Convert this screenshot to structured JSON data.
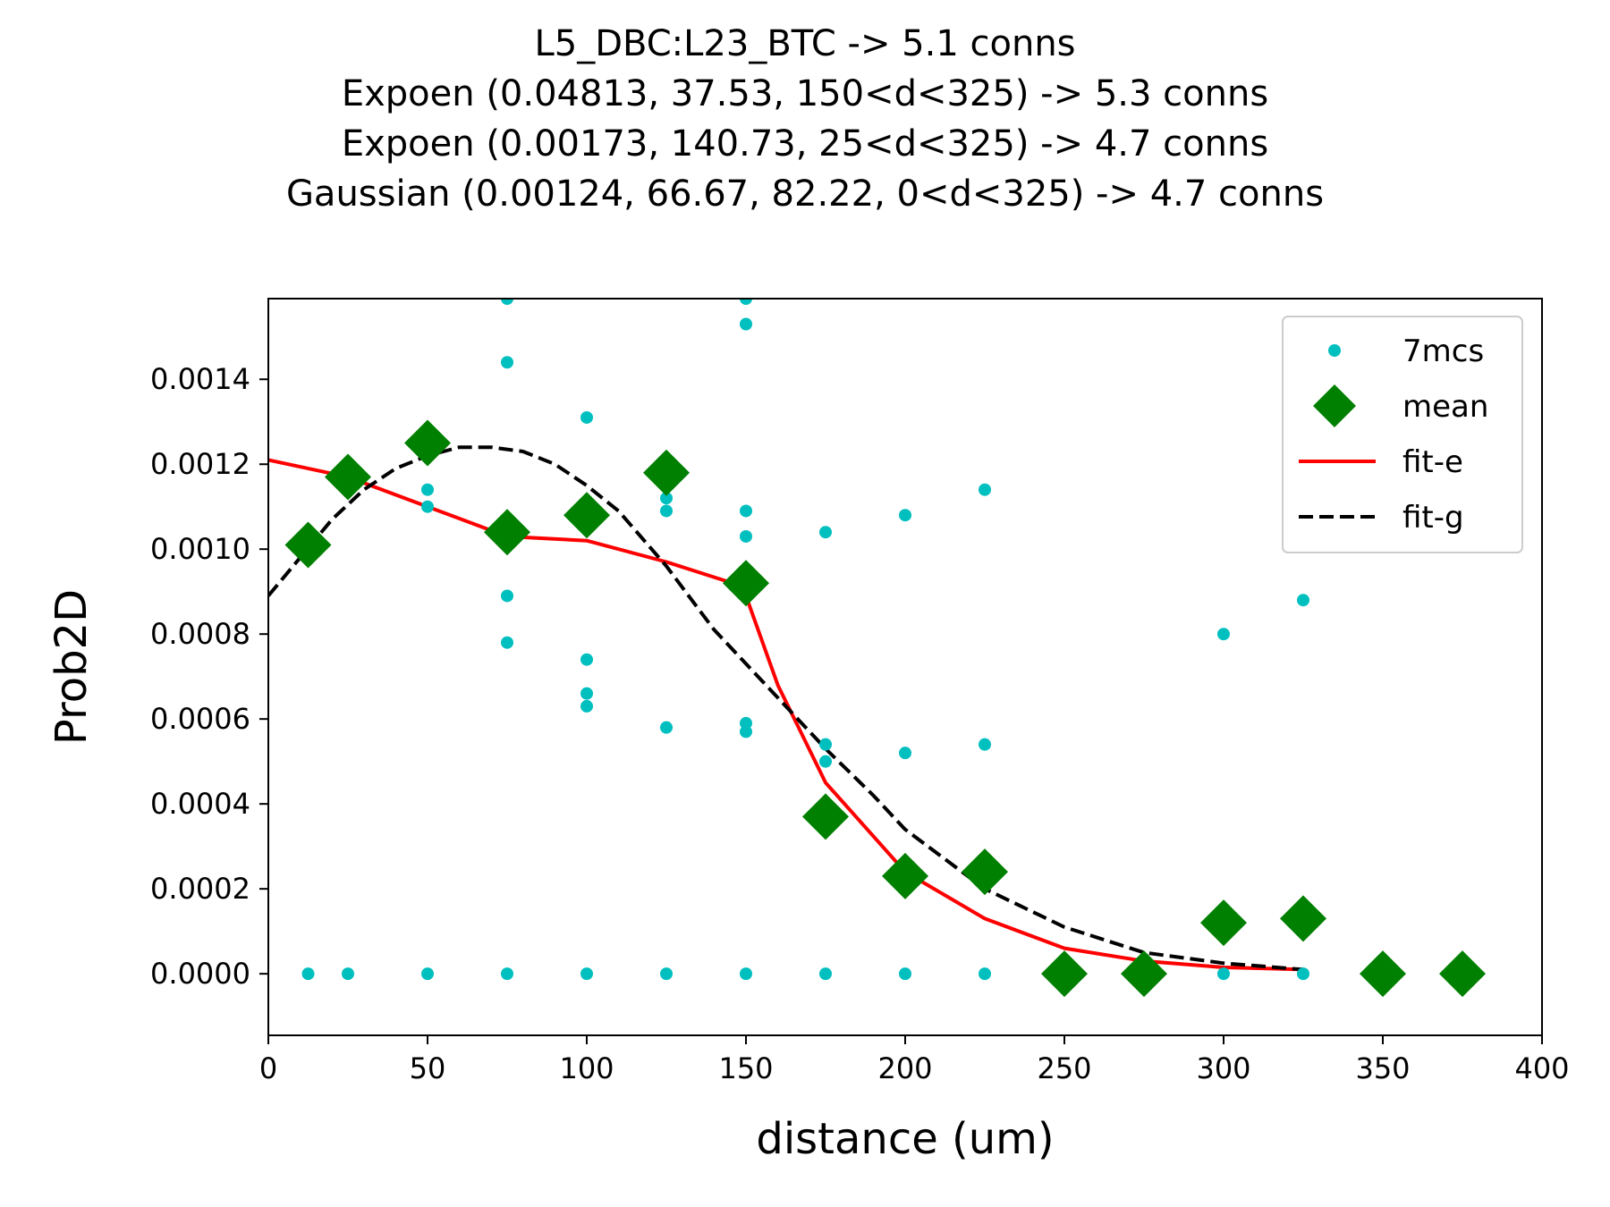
{
  "chart_data": {
    "type": "scatter",
    "title_lines": [
      "L5_DBC:L23_BTC -> 5.1 conns",
      "Expoen (0.04813, 37.53, 150<d<325) -> 5.3 conns",
      "Expoen (0.00173, 140.73, 25<d<325) -> 4.7 conns",
      "Gaussian (0.00124, 66.67, 82.22, 0<d<325) -> 4.7 conns"
    ],
    "xlabel": "distance (um)",
    "ylabel": "Prob2D",
    "xlim": [
      0,
      400
    ],
    "ylim": [
      -0.000145,
      0.00159
    ],
    "xticks": [
      0,
      50,
      100,
      150,
      200,
      250,
      300,
      350,
      400
    ],
    "yticks": [
      0.0,
      0.0002,
      0.0004,
      0.0006,
      0.0008,
      0.001,
      0.0012,
      0.0014
    ],
    "ytick_labels": [
      "0.0000",
      "0.0002",
      "0.0004",
      "0.0006",
      "0.0008",
      "0.0010",
      "0.0012",
      "0.0014"
    ],
    "grid": false,
    "legend_position": "top-right",
    "colors": {
      "points": "#00bfbf",
      "mean": "#008000",
      "fit_e": "#ff0000",
      "fit_g": "#000000"
    },
    "series": [
      {
        "name": "7mcs",
        "kind": "points",
        "points": [
          [
            12.5,
            0.0
          ],
          [
            25,
            0.0
          ],
          [
            50,
            0.00114
          ],
          [
            50,
            0.0011
          ],
          [
            50,
            0.0
          ],
          [
            75,
            0.00159
          ],
          [
            75,
            0.00144
          ],
          [
            75,
            0.00089
          ],
          [
            75,
            0.00078
          ],
          [
            75,
            0.0
          ],
          [
            100,
            0.00131
          ],
          [
            100,
            0.00074
          ],
          [
            100,
            0.00066
          ],
          [
            100,
            0.00063
          ],
          [
            100,
            0.0
          ],
          [
            125,
            0.00112
          ],
          [
            125,
            0.00109
          ],
          [
            125,
            0.00058
          ],
          [
            125,
            0.0
          ],
          [
            150,
            0.00159
          ],
          [
            150,
            0.00153
          ],
          [
            150,
            0.00109
          ],
          [
            150,
            0.00103
          ],
          [
            150,
            0.00059
          ],
          [
            150,
            0.00057
          ],
          [
            150,
            0.0
          ],
          [
            175,
            0.00104
          ],
          [
            175,
            0.00054
          ],
          [
            175,
            0.0005
          ],
          [
            175,
            0.0
          ],
          [
            200,
            0.00108
          ],
          [
            200,
            0.00052
          ],
          [
            200,
            0.0
          ],
          [
            225,
            0.00114
          ],
          [
            225,
            0.00054
          ],
          [
            225,
            0.0
          ],
          [
            300,
            0.0008
          ],
          [
            300,
            0.0
          ],
          [
            325,
            0.00088
          ],
          [
            325,
            0.0
          ]
        ]
      },
      {
        "name": "mean",
        "kind": "diamonds",
        "points": [
          [
            12.5,
            0.00101
          ],
          [
            25,
            0.00117
          ],
          [
            50,
            0.00125
          ],
          [
            75,
            0.00104
          ],
          [
            100,
            0.00108
          ],
          [
            125,
            0.00118
          ],
          [
            150,
            0.00092
          ],
          [
            175,
            0.00037
          ],
          [
            200,
            0.00023
          ],
          [
            225,
            0.00024
          ],
          [
            250,
            0.0
          ],
          [
            275,
            0.0
          ],
          [
            300,
            0.00012
          ],
          [
            325,
            0.00013
          ],
          [
            350,
            0.0
          ],
          [
            375,
            0.0
          ]
        ]
      },
      {
        "name": "fit-e",
        "kind": "line",
        "points": [
          [
            0,
            0.00121
          ],
          [
            25,
            0.00117
          ],
          [
            50,
            0.0011
          ],
          [
            75,
            0.00103
          ],
          [
            100,
            0.00102
          ],
          [
            125,
            0.00097
          ],
          [
            150,
            0.00091
          ],
          [
            150,
            0.00089
          ],
          [
            160,
            0.00068
          ],
          [
            175,
            0.00045
          ],
          [
            200,
            0.00024
          ],
          [
            225,
            0.00013
          ],
          [
            250,
            6e-05
          ],
          [
            275,
            3e-05
          ],
          [
            300,
            1.5e-05
          ],
          [
            325,
            1e-05
          ]
        ]
      },
      {
        "name": "fit-g",
        "kind": "dashed-line",
        "points": [
          [
            0,
            0.00089
          ],
          [
            10,
            0.00098
          ],
          [
            20,
            0.00107
          ],
          [
            30,
            0.00114
          ],
          [
            40,
            0.00119
          ],
          [
            50,
            0.00122
          ],
          [
            60,
            0.00124
          ],
          [
            70,
            0.00124
          ],
          [
            80,
            0.00123
          ],
          [
            90,
            0.0012
          ],
          [
            100,
            0.00115
          ],
          [
            110,
            0.00109
          ],
          [
            125,
            0.00096
          ],
          [
            140,
            0.00081
          ],
          [
            150,
            0.00073
          ],
          [
            165,
            0.00061
          ],
          [
            175,
            0.00053
          ],
          [
            190,
            0.00042
          ],
          [
            200,
            0.00034
          ],
          [
            225,
            0.0002
          ],
          [
            250,
            0.00011
          ],
          [
            275,
            5e-05
          ],
          [
            300,
            2.5e-05
          ],
          [
            325,
            1e-05
          ]
        ]
      }
    ]
  }
}
